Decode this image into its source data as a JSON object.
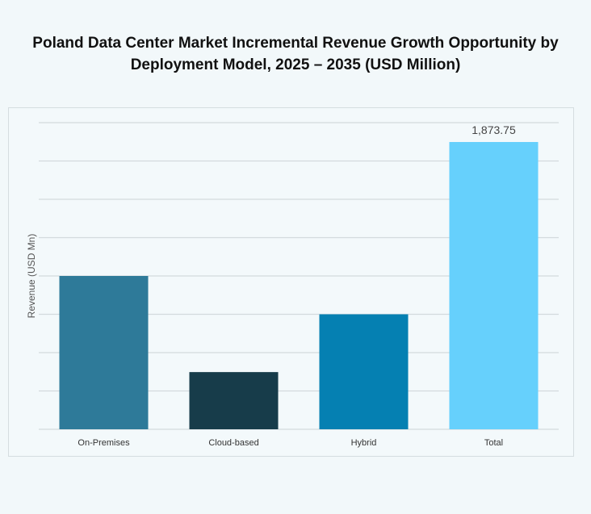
{
  "chart_data": {
    "type": "bar",
    "title": "Poland Data Center Market Incremental Revenue Growth Opportunity by Deployment Model, 2025 – 2035 (USD Million)",
    "xlabel": "",
    "ylabel": "Revenue (USD Mn)",
    "categories": [
      "On-Premises",
      "Cloud-based",
      "Hybrid",
      "Total"
    ],
    "values": [
      1000,
      373,
      750,
      1873.75
    ],
    "data_labels": [
      "",
      "",
      "",
      "1,873.75"
    ],
    "colors": [
      "#2e7a99",
      "#173c4a",
      "#0580b2",
      "#66d0fc"
    ],
    "ylim": [
      0,
      2000
    ],
    "y_grid_step": 250,
    "grid": true,
    "y_tick_labels_shown": false,
    "legend": "none"
  }
}
